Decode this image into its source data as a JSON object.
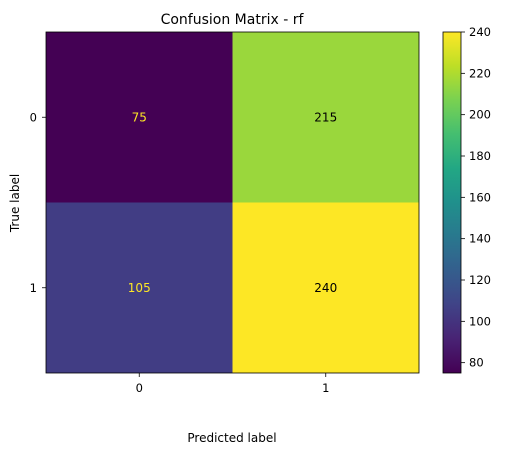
{
  "chart_data": {
    "type": "heatmap",
    "title": "Confusion Matrix - rf",
    "xlabel": "Predicted label",
    "ylabel": "True label",
    "x_categories": [
      "0",
      "1"
    ],
    "y_categories": [
      "0",
      "1"
    ],
    "matrix": [
      [
        75,
        215
      ],
      [
        105,
        240
      ]
    ],
    "cell_labels": [
      [
        "75",
        "215"
      ],
      [
        "105",
        "240"
      ]
    ],
    "colorbar": {
      "min": 75,
      "max": 240,
      "ticks": [
        80,
        100,
        120,
        140,
        160,
        180,
        200,
        220,
        240
      ],
      "tick_labels": [
        "80",
        "100",
        "120",
        "140",
        "160",
        "180",
        "200",
        "220",
        "240"
      ],
      "colormap": "viridis"
    },
    "grid": false,
    "legend": "colorbar-right"
  }
}
